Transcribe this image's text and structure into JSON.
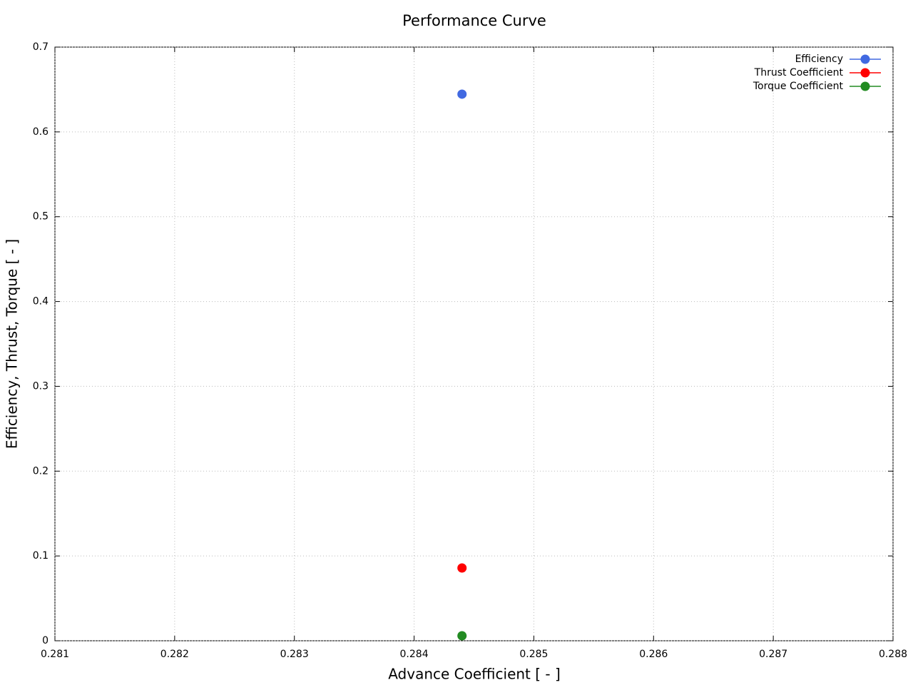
{
  "chart_data": {
    "type": "line",
    "title": "Performance Curve",
    "x_label": "Advance Coefficient [ - ]",
    "y_label": "Efficiency, Thrust, Torque [ - ]",
    "x": [
      0.2844
    ],
    "series": [
      {
        "name": "Efficiency",
        "color": "#4169e1",
        "values": [
          0.6445
        ]
      },
      {
        "name": "Thrust Coefficient",
        "color": "#ff0000",
        "values": [
          0.0858
        ]
      },
      {
        "name": "Torque Coefficient",
        "color": "#228b22",
        "values": [
          0.0059
        ]
      }
    ],
    "xlim": [
      0.281,
      0.288
    ],
    "xticks": [
      0.281,
      0.282,
      0.283,
      0.284,
      0.285,
      0.286,
      0.287,
      0.288
    ],
    "ylim": [
      0,
      0.7
    ],
    "yticks": [
      0,
      0.1,
      0.2,
      0.3,
      0.4,
      0.5,
      0.6,
      0.7
    ],
    "grid": true,
    "legend": "top-right"
  }
}
